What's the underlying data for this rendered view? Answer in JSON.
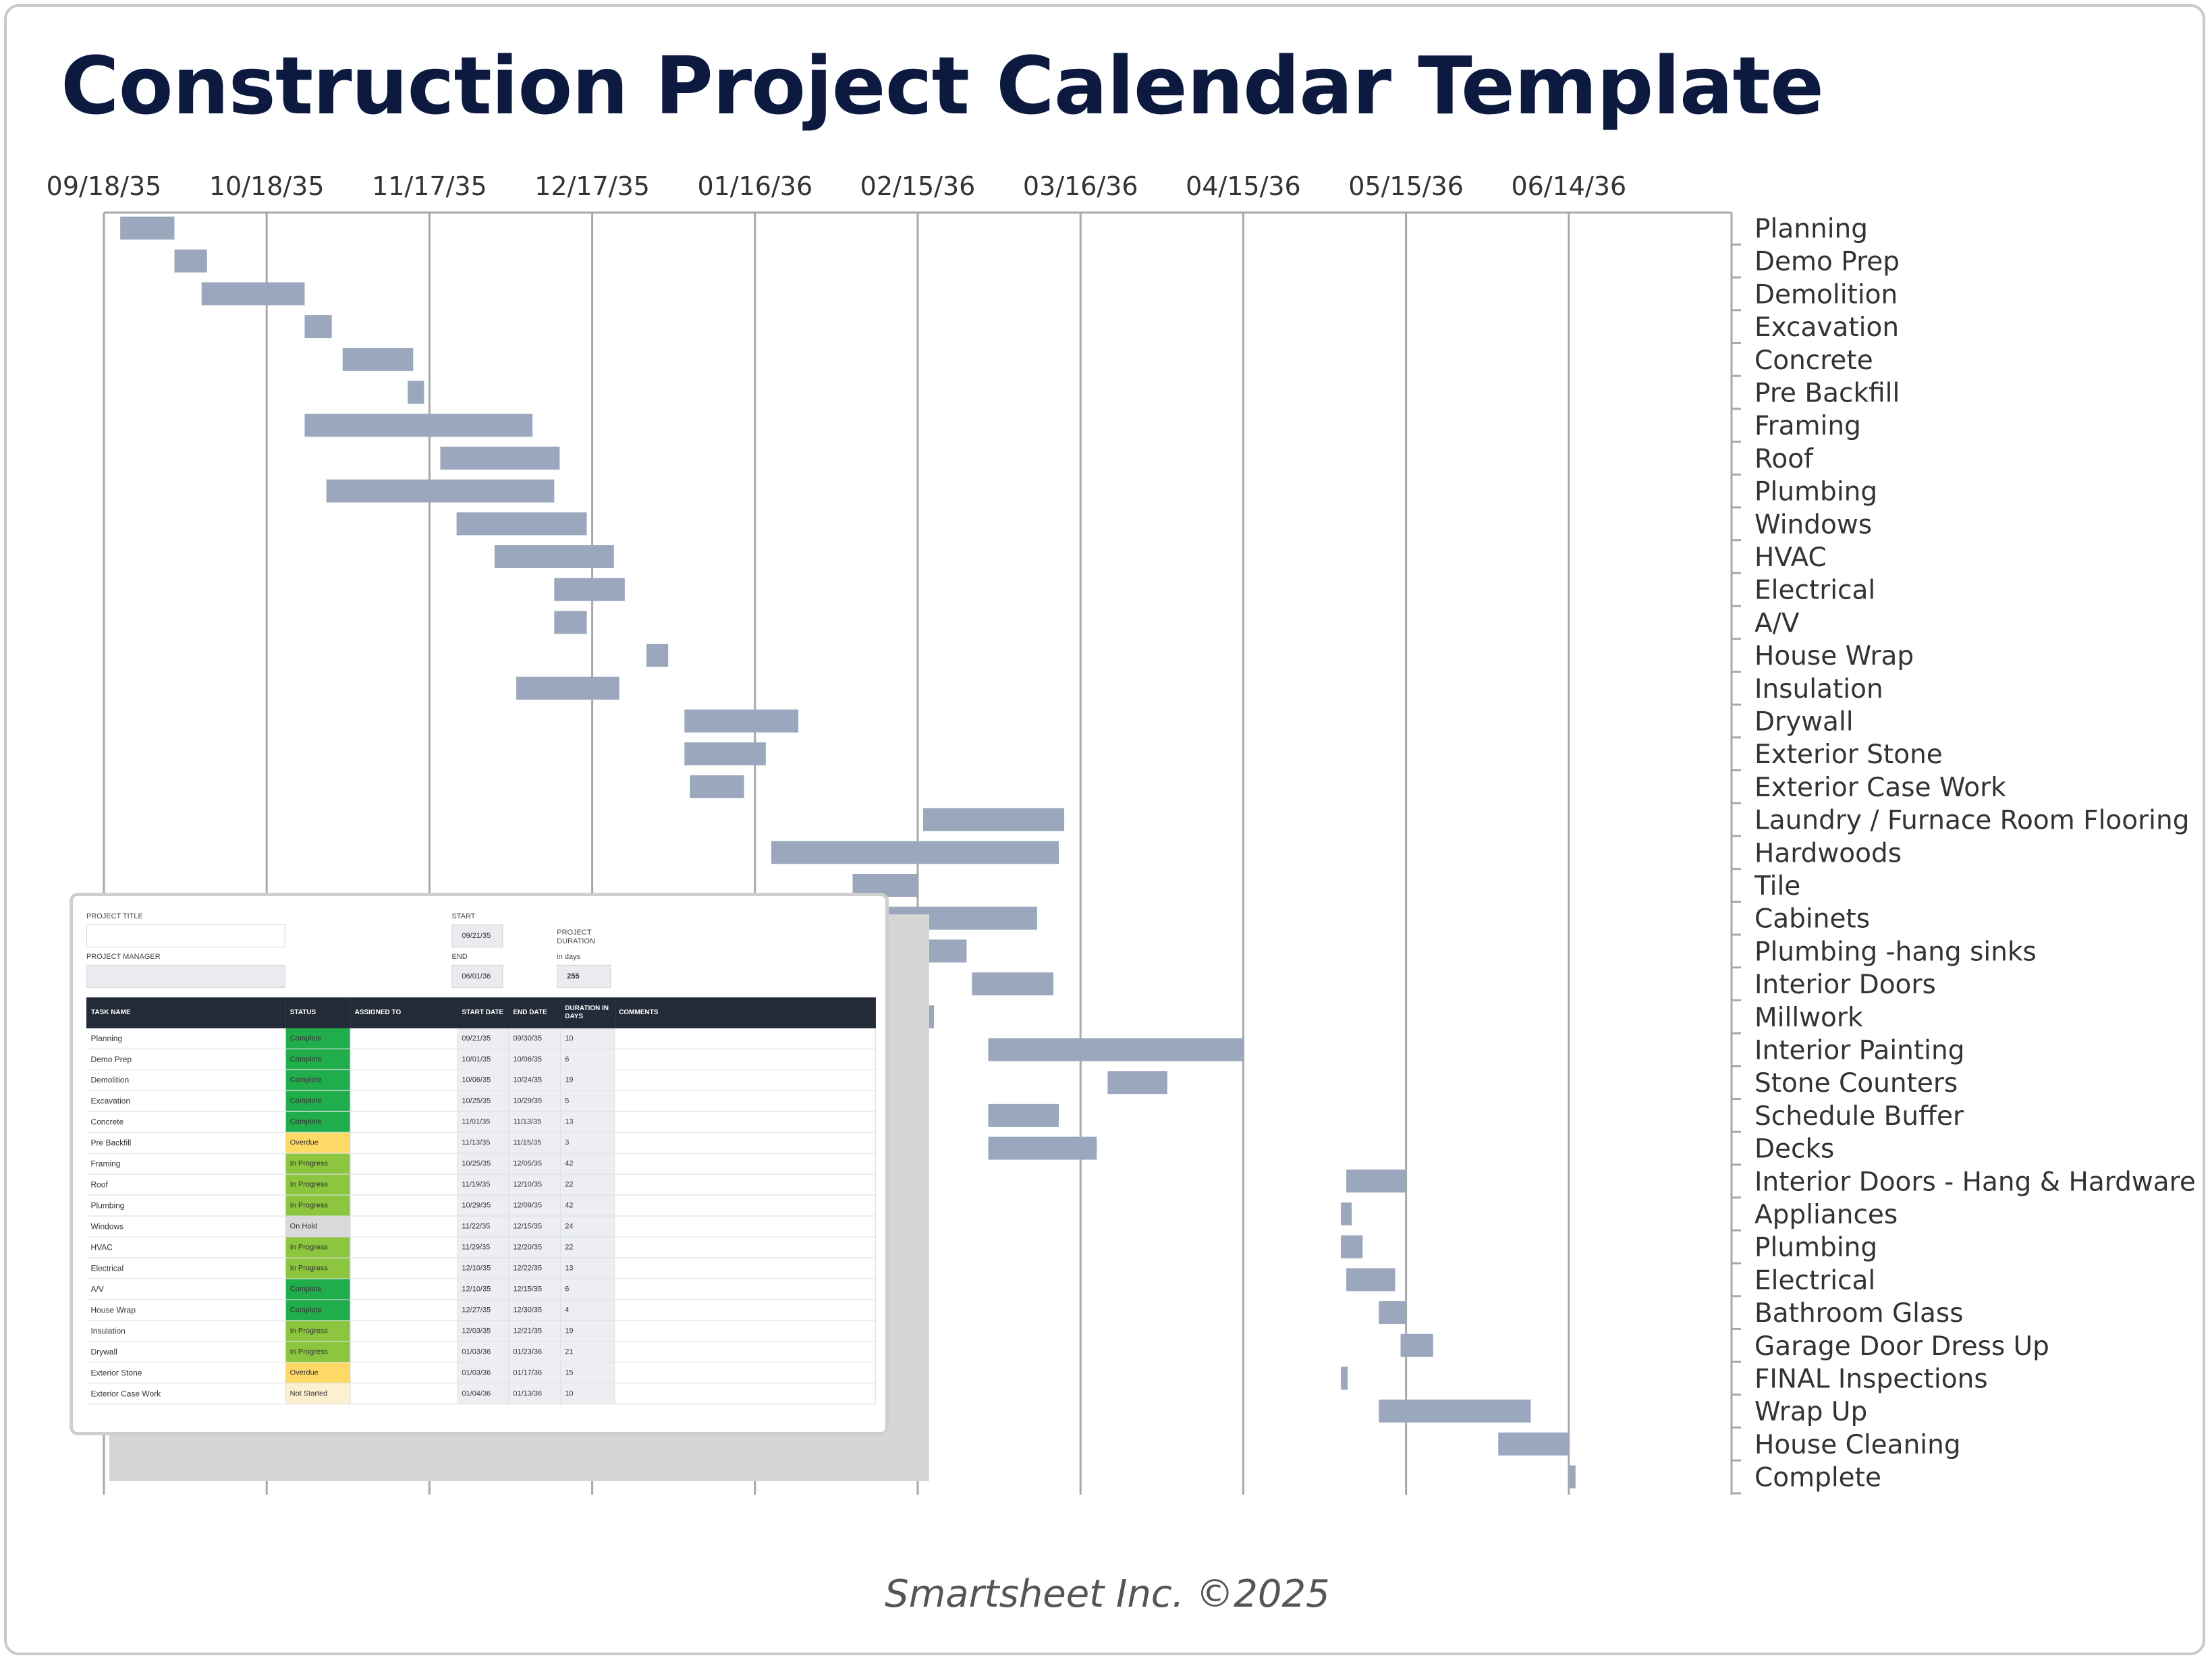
{
  "title": "Construction Project Calendar Template",
  "footer": "Smartsheet Inc. ©2025",
  "chart_data": {
    "type": "bar",
    "orientation": "horizontal-gantt",
    "x_axis": {
      "ticks": [
        "09/18/35",
        "10/18/35",
        "11/17/35",
        "12/17/35",
        "01/16/36",
        "02/15/36",
        "03/16/36",
        "04/15/36",
        "05/15/36",
        "06/14/36"
      ],
      "position": "top",
      "range": [
        "09/18/35",
        "07/14/36"
      ],
      "grid": true
    },
    "y_axis": {
      "position": "right"
    },
    "bar_color": "#9aa7bd",
    "tasks": [
      {
        "name": "Planning",
        "start": "09/21/35",
        "end": "10/01/35"
      },
      {
        "name": "Demo Prep",
        "start": "10/01/35",
        "end": "10/07/35"
      },
      {
        "name": "Demolition",
        "start": "10/06/35",
        "end": "10/25/35"
      },
      {
        "name": "Excavation",
        "start": "10/25/35",
        "end": "10/30/35"
      },
      {
        "name": "Concrete",
        "start": "11/01/35",
        "end": "11/14/35"
      },
      {
        "name": "Pre Backfill",
        "start": "11/13/35",
        "end": "11/16/35"
      },
      {
        "name": "Framing",
        "start": "10/25/35",
        "end": "12/06/35"
      },
      {
        "name": "Roof",
        "start": "11/19/35",
        "end": "12/11/35"
      },
      {
        "name": "Plumbing",
        "start": "10/29/35",
        "end": "12/10/35"
      },
      {
        "name": "Windows",
        "start": "11/22/35",
        "end": "12/16/35"
      },
      {
        "name": "HVAC",
        "start": "11/29/35",
        "end": "12/21/35"
      },
      {
        "name": "Electrical",
        "start": "12/10/35",
        "end": "12/23/35"
      },
      {
        "name": "A/V",
        "start": "12/10/35",
        "end": "12/16/35"
      },
      {
        "name": "House Wrap",
        "start": "12/27/35",
        "end": "12/31/35"
      },
      {
        "name": "Insulation",
        "start": "12/03/35",
        "end": "12/22/35"
      },
      {
        "name": "Drywall",
        "start": "01/03/36",
        "end": "01/24/36"
      },
      {
        "name": "Exterior Stone",
        "start": "01/03/36",
        "end": "01/18/36"
      },
      {
        "name": "Exterior Case Work",
        "start": "01/04/36",
        "end": "01/14/36"
      },
      {
        "name": "Laundry / Furnace Room Flooring",
        "start": "02/16/36",
        "end": "03/13/36"
      },
      {
        "name": "Hardwoods",
        "start": "01/19/36",
        "end": "03/12/36"
      },
      {
        "name": "Tile",
        "start": "02/03/36",
        "end": "02/15/36"
      },
      {
        "name": "Cabinets",
        "start": "01/15/36",
        "end": "03/08/36"
      },
      {
        "name": "Plumbing -hang sinks",
        "start": "02/16/36",
        "end": "02/24/36"
      },
      {
        "name": "Interior Doors",
        "start": "02/25/36",
        "end": "03/11/36"
      },
      {
        "name": "Millwork",
        "start": "02/15/36",
        "end": "02/18/36"
      },
      {
        "name": "Interior Painting",
        "start": "02/28/36",
        "end": "04/15/36"
      },
      {
        "name": "Stone Counters",
        "start": "03/21/36",
        "end": "04/01/36"
      },
      {
        "name": "Schedule Buffer",
        "start": "02/28/36",
        "end": "03/12/36"
      },
      {
        "name": "Decks",
        "start": "02/28/36",
        "end": "03/19/36"
      },
      {
        "name": "Interior Doors - Hang & Hardware",
        "start": "05/04/36",
        "end": "05/15/36"
      },
      {
        "name": "Appliances",
        "start": "05/03/36",
        "end": "05/05/36"
      },
      {
        "name": "Plumbing",
        "start": "05/03/36",
        "end": "05/07/36"
      },
      {
        "name": "Electrical",
        "start": "05/04/36",
        "end": "05/13/36"
      },
      {
        "name": "Bathroom Glass",
        "start": "05/10/36",
        "end": "05/15/36"
      },
      {
        "name": "Garage Door Dress Up",
        "start": "05/14/36",
        "end": "05/20/36"
      },
      {
        "name": "FINAL Inspections",
        "start": "05/03/36",
        "end": "05/04/36"
      },
      {
        "name": "Wrap Up",
        "start": "05/10/36",
        "end": "06/07/36"
      },
      {
        "name": "House Cleaning",
        "start": "06/01/36",
        "end": "06/14/36"
      },
      {
        "name": "Complete",
        "start": "06/14/36",
        "end": "06/15/36"
      }
    ]
  },
  "sheet": {
    "project_title_label": "PROJECT TITLE",
    "project_manager_label": "PROJECT MANAGER",
    "start_label": "START",
    "start_value": "09/21/35",
    "end_label": "END",
    "end_value": "06/01/36",
    "duration_label": "PROJECT DURATION",
    "duration_sub": "in days",
    "duration_value": "255",
    "columns": [
      "TASK NAME",
      "STATUS",
      "ASSIGNED TO",
      "START DATE",
      "END DATE",
      "DURATION in days",
      "COMMENTS"
    ],
    "status_colors": {
      "Complete": "#1fae4b",
      "Overdue": "#ffd966",
      "In Progress": "#8cc63f",
      "On Hold": "#d9d9d9",
      "Not Started": "#fdf0d0"
    },
    "rows": [
      {
        "task": "Planning",
        "status": "Complete",
        "start": "09/21/35",
        "end": "09/30/35",
        "duration": "10"
      },
      {
        "task": "Demo Prep",
        "status": "Complete",
        "start": "10/01/35",
        "end": "10/06/35",
        "duration": "6"
      },
      {
        "task": "Demolition",
        "status": "Complete",
        "start": "10/06/35",
        "end": "10/24/35",
        "duration": "19"
      },
      {
        "task": "Excavation",
        "status": "Complete",
        "start": "10/25/35",
        "end": "10/29/35",
        "duration": "5"
      },
      {
        "task": "Concrete",
        "status": "Complete",
        "start": "11/01/35",
        "end": "11/13/35",
        "duration": "13"
      },
      {
        "task": "Pre Backfill",
        "status": "Overdue",
        "start": "11/13/35",
        "end": "11/15/35",
        "duration": "3"
      },
      {
        "task": "Framing",
        "status": "In Progress",
        "start": "10/25/35",
        "end": "12/05/35",
        "duration": "42"
      },
      {
        "task": "Roof",
        "status": "In Progress",
        "start": "11/19/35",
        "end": "12/10/35",
        "duration": "22"
      },
      {
        "task": "Plumbing",
        "status": "In Progress",
        "start": "10/29/35",
        "end": "12/09/35",
        "duration": "42"
      },
      {
        "task": "Windows",
        "status": "On Hold",
        "start": "11/22/35",
        "end": "12/15/35",
        "duration": "24"
      },
      {
        "task": "HVAC",
        "status": "In Progress",
        "start": "11/29/35",
        "end": "12/20/35",
        "duration": "22"
      },
      {
        "task": "Electrical",
        "status": "In Progress",
        "start": "12/10/35",
        "end": "12/22/35",
        "duration": "13"
      },
      {
        "task": "A/V",
        "status": "Complete",
        "start": "12/10/35",
        "end": "12/15/35",
        "duration": "6"
      },
      {
        "task": "House Wrap",
        "status": "Complete",
        "start": "12/27/35",
        "end": "12/30/35",
        "duration": "4"
      },
      {
        "task": "Insulation",
        "status": "In Progress",
        "start": "12/03/35",
        "end": "12/21/35",
        "duration": "19"
      },
      {
        "task": "Drywall",
        "status": "In Progress",
        "start": "01/03/36",
        "end": "01/23/36",
        "duration": "21"
      },
      {
        "task": "Exterior Stone",
        "status": "Overdue",
        "start": "01/03/36",
        "end": "01/17/36",
        "duration": "15"
      },
      {
        "task": "Exterior Case Work",
        "status": "Not Started",
        "start": "01/04/36",
        "end": "01/13/36",
        "duration": "10"
      }
    ]
  }
}
